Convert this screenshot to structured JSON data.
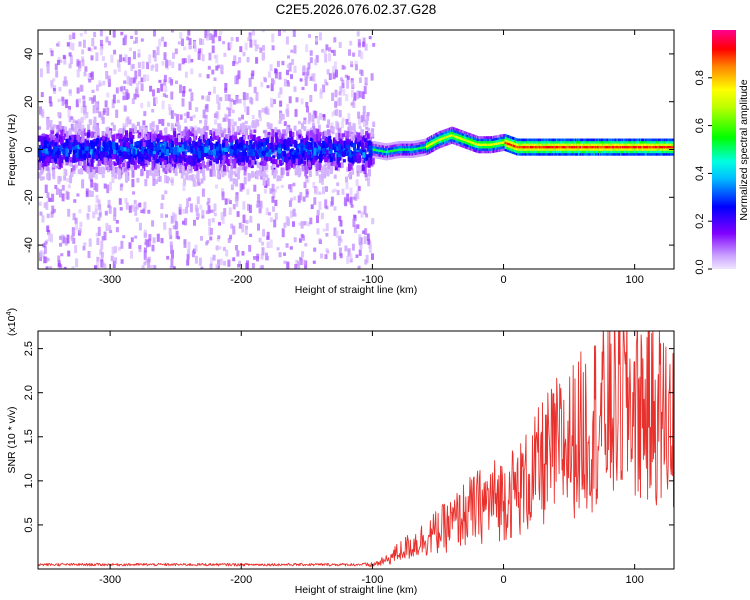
{
  "title": "C2E5.2026.076.02.37.G28",
  "chart_data": [
    {
      "type": "heatmap",
      "xlabel": "Height of straight line (km)",
      "ylabel": "Frequency (Hz)",
      "xlim": [
        -355,
        130
      ],
      "ylim": [
        -50,
        50
      ],
      "xticks": [
        -300,
        -200,
        -100,
        0,
        100
      ],
      "yticks": [
        -40,
        -20,
        0,
        20,
        40
      ],
      "colorbar": {
        "label": "Normalized spectral amplitude",
        "range": [
          0,
          1
        ],
        "ticks": [
          "0.0",
          "0.2",
          "0.4",
          "0.6",
          "0.8"
        ],
        "tick_values": [
          0,
          0.2,
          0.4,
          0.6,
          0.8
        ],
        "colors": [
          "#f0e6ff",
          "#8000ff",
          "#0000ff",
          "#00ffff",
          "#00ff00",
          "#ffff00",
          "#ff0000",
          "#ff00a0"
        ]
      },
      "description_values": {
        "diffuse_region_x": [
          -355,
          -100
        ],
        "ridge_frequency_profile": [
          [
            -355,
            0
          ],
          [
            -150,
            0
          ],
          [
            -100,
            0
          ],
          [
            -90,
            -1
          ],
          [
            -80,
            0
          ],
          [
            -70,
            0
          ],
          [
            -60,
            1
          ],
          [
            -50,
            4
          ],
          [
            -40,
            6
          ],
          [
            -30,
            4
          ],
          [
            -20,
            2
          ],
          [
            -10,
            2
          ],
          [
            0,
            3
          ],
          [
            10,
            1
          ],
          [
            50,
            1
          ],
          [
            90,
            1
          ],
          [
            130,
            1
          ]
        ]
      }
    },
    {
      "type": "line",
      "xlabel": "Height of straight line (km)",
      "ylabel": "SNR (10 * v/v)",
      "yscale_note": "(x10",
      "yscale_exp": "4",
      "xlim": [
        -355,
        130
      ],
      "ylim": [
        0,
        2.7
      ],
      "xticks": [
        -300,
        -200,
        -100,
        0,
        100
      ],
      "yticks": [
        "0.5",
        "1.0",
        "1.5",
        "2.0",
        "2.5"
      ],
      "ytick_values": [
        0.5,
        1.0,
        1.5,
        2.0,
        2.5
      ],
      "series_color": "#e8302c",
      "envelope": [
        [
          -355,
          0.05
        ],
        [
          -110,
          0.05
        ],
        [
          -100,
          0.06
        ],
        [
          -90,
          0.12
        ],
        [
          -80,
          0.25
        ],
        [
          -70,
          0.35
        ],
        [
          -60,
          0.45
        ],
        [
          -50,
          0.55
        ],
        [
          -40,
          0.65
        ],
        [
          -30,
          0.8
        ],
        [
          -20,
          0.9
        ],
        [
          -10,
          1.0
        ],
        [
          0,
          1.05
        ],
        [
          10,
          1.15
        ],
        [
          20,
          1.3
        ],
        [
          30,
          1.55
        ],
        [
          40,
          1.75
        ],
        [
          50,
          1.85
        ],
        [
          60,
          2.0
        ],
        [
          70,
          2.2
        ],
        [
          80,
          2.3
        ],
        [
          90,
          2.5
        ],
        [
          100,
          2.45
        ],
        [
          110,
          2.35
        ],
        [
          120,
          2.25
        ],
        [
          130,
          2.1
        ]
      ]
    }
  ]
}
